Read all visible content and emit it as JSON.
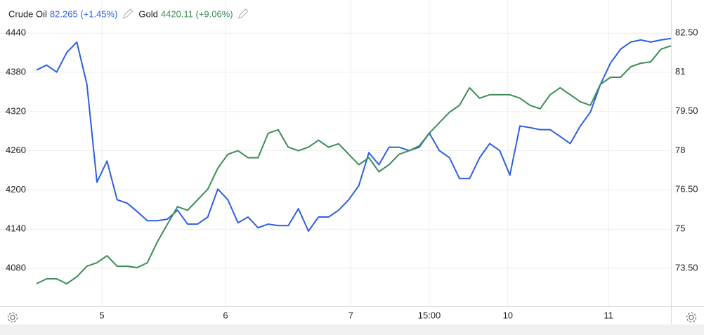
{
  "chart_data": {
    "type": "line",
    "x": [
      0,
      1,
      2,
      3,
      4,
      5,
      6,
      7,
      8,
      9,
      10,
      11,
      12,
      13,
      14,
      15,
      16,
      17,
      18,
      19,
      20,
      21,
      22,
      23,
      24,
      25,
      26,
      27,
      28,
      29,
      30,
      31,
      32,
      33,
      34,
      35,
      36,
      37,
      38,
      39,
      40,
      41,
      42,
      43,
      44,
      45,
      46,
      47,
      48,
      49,
      50,
      51,
      52,
      53,
      54,
      55,
      56,
      57,
      58,
      59,
      60,
      61,
      62,
      63
    ],
    "xlim": [
      0,
      63
    ],
    "xticks": [
      {
        "value": 6.49,
        "label": "5"
      },
      {
        "value": 18.77,
        "label": "6"
      },
      {
        "value": 31.2,
        "label": "7"
      },
      {
        "value": 39.0,
        "label": "15:00"
      },
      {
        "value": 46.8,
        "label": "10"
      },
      {
        "value": 56.8,
        "label": "11"
      }
    ],
    "ylim": [
      4022,
      4480
    ],
    "yticks": [
      4440,
      4380,
      4320,
      4260,
      4200,
      4140,
      4080
    ],
    "y2lim": [
      72.05,
      83.49
    ],
    "y2ticks": [
      {
        "value": 82.5,
        "label": "82.50"
      },
      81,
      {
        "value": 79.5,
        "label": "79.50"
      },
      78,
      {
        "value": 76.5,
        "label": "76.50"
      },
      75,
      {
        "value": 73.5,
        "label": "73.50"
      }
    ],
    "grid": true,
    "series": [
      {
        "name": "Crude Oil",
        "legend_value": "82.265 (+1.45%)",
        "color": "#2b5fe3",
        "axis": "y2",
        "values": [
          81.08,
          81.27,
          81.0,
          81.75,
          82.15,
          80.54,
          76.79,
          77.6,
          76.12,
          75.99,
          75.67,
          75.32,
          75.32,
          75.38,
          75.72,
          75.19,
          75.19,
          75.46,
          76.53,
          76.12,
          75.24,
          75.46,
          75.05,
          75.19,
          75.13,
          75.13,
          75.78,
          74.92,
          75.46,
          75.46,
          75.72,
          76.12,
          76.66,
          77.92,
          77.46,
          78.13,
          78.13,
          78.0,
          78.13,
          78.67,
          78.0,
          77.73,
          76.93,
          76.93,
          77.73,
          78.27,
          78.0,
          77.06,
          78.94,
          78.88,
          78.8,
          78.8,
          78.54,
          78.27,
          78.94,
          79.47,
          80.54,
          81.35,
          81.88,
          82.15,
          82.23,
          82.15,
          82.23,
          82.29
        ]
      },
      {
        "name": "Gold",
        "legend_value": "4420.11 (+9.06%)",
        "color": "#3b8c57",
        "values": [
          4056.4,
          4063.9,
          4063.9,
          4056.4,
          4067.1,
          4083.2,
          4088.6,
          4099.3,
          4083.2,
          4083.2,
          4081.1,
          4088.6,
          4120.7,
          4147.5,
          4174.3,
          4168.9,
          4185.0,
          4201.1,
          4233.2,
          4254.6,
          4260.0,
          4249.3,
          4249.3,
          4286.8,
          4292.1,
          4265.4,
          4260.0,
          4265.4,
          4276.1,
          4265.4,
          4270.7,
          4254.6,
          4238.6,
          4249.3,
          4227.9,
          4238.6,
          4254.6,
          4260.0,
          4267.5,
          4286.8,
          4302.9,
          4318.9,
          4329.6,
          4356.4,
          4340.4,
          4345.7,
          4345.7,
          4345.7,
          4340.4,
          4329.6,
          4324.3,
          4345.7,
          4356.4,
          4345.7,
          4335.0,
          4329.6,
          4361.8,
          4372.5,
          4372.5,
          4388.6,
          4393.9,
          4396.1,
          4415.4,
          4420.7
        ]
      }
    ]
  }
}
